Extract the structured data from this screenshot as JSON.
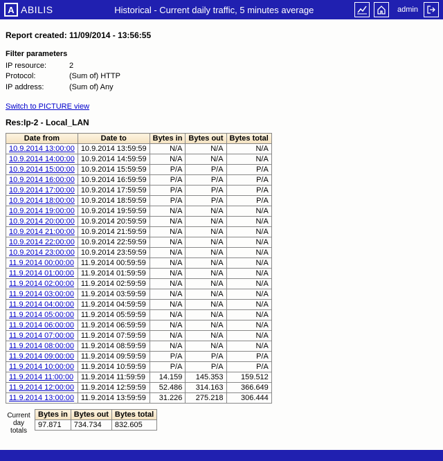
{
  "header": {
    "brand": "ABILIS",
    "title": "Historical - Current daily traffic, 5 minutes average",
    "admin_label": "admin"
  },
  "report": {
    "created_label": "Report created: 11/09/2014 - 13:56:55"
  },
  "filters": {
    "title": "Filter parameters",
    "rows": [
      {
        "label": "IP resource:",
        "value": "2"
      },
      {
        "label": "Protocol:",
        "value": "(Sum of) HTTP"
      },
      {
        "label": "IP address:",
        "value": "(Sum of) Any"
      }
    ]
  },
  "switch_link": "Switch to PICTURE view",
  "res_title": "Res:Ip-2 - Local_LAN",
  "table": {
    "headers": [
      "Date from",
      "Date to",
      "Bytes in",
      "Bytes out",
      "Bytes total"
    ],
    "col_widths": [
      "90px",
      "90px",
      "44px",
      "48px",
      "54px"
    ],
    "rows": [
      {
        "from": "10.9.2014 13:00:00",
        "to": "10.9.2014 13:59:59",
        "in": "N/A",
        "out": "N/A",
        "tot": "N/A"
      },
      {
        "from": "10.9.2014 14:00:00",
        "to": "10.9.2014 14:59:59",
        "in": "N/A",
        "out": "N/A",
        "tot": "N/A"
      },
      {
        "from": "10.9.2014 15:00:00",
        "to": "10.9.2014 15:59:59",
        "in": "P/A",
        "out": "P/A",
        "tot": "P/A"
      },
      {
        "from": "10.9.2014 16:00:00",
        "to": "10.9.2014 16:59:59",
        "in": "P/A",
        "out": "P/A",
        "tot": "P/A"
      },
      {
        "from": "10.9.2014 17:00:00",
        "to": "10.9.2014 17:59:59",
        "in": "P/A",
        "out": "P/A",
        "tot": "P/A"
      },
      {
        "from": "10.9.2014 18:00:00",
        "to": "10.9.2014 18:59:59",
        "in": "P/A",
        "out": "P/A",
        "tot": "P/A"
      },
      {
        "from": "10.9.2014 19:00:00",
        "to": "10.9.2014 19:59:59",
        "in": "N/A",
        "out": "N/A",
        "tot": "N/A"
      },
      {
        "from": "10.9.2014 20:00:00",
        "to": "10.9.2014 20:59:59",
        "in": "N/A",
        "out": "N/A",
        "tot": "N/A"
      },
      {
        "from": "10.9.2014 21:00:00",
        "to": "10.9.2014 21:59:59",
        "in": "N/A",
        "out": "N/A",
        "tot": "N/A"
      },
      {
        "from": "10.9.2014 22:00:00",
        "to": "10.9.2014 22:59:59",
        "in": "N/A",
        "out": "N/A",
        "tot": "N/A"
      },
      {
        "from": "10.9.2014 23:00:00",
        "to": "10.9.2014 23:59:59",
        "in": "N/A",
        "out": "N/A",
        "tot": "N/A"
      },
      {
        "from": "11.9.2014 00:00:00",
        "to": "11.9.2014 00:59:59",
        "in": "N/A",
        "out": "N/A",
        "tot": "N/A"
      },
      {
        "from": "11.9.2014 01:00:00",
        "to": "11.9.2014 01:59:59",
        "in": "N/A",
        "out": "N/A",
        "tot": "N/A"
      },
      {
        "from": "11.9.2014 02:00:00",
        "to": "11.9.2014 02:59:59",
        "in": "N/A",
        "out": "N/A",
        "tot": "N/A"
      },
      {
        "from": "11.9.2014 03:00:00",
        "to": "11.9.2014 03:59:59",
        "in": "N/A",
        "out": "N/A",
        "tot": "N/A"
      },
      {
        "from": "11.9.2014 04:00:00",
        "to": "11.9.2014 04:59:59",
        "in": "N/A",
        "out": "N/A",
        "tot": "N/A"
      },
      {
        "from": "11.9.2014 05:00:00",
        "to": "11.9.2014 05:59:59",
        "in": "N/A",
        "out": "N/A",
        "tot": "N/A"
      },
      {
        "from": "11.9.2014 06:00:00",
        "to": "11.9.2014 06:59:59",
        "in": "N/A",
        "out": "N/A",
        "tot": "N/A"
      },
      {
        "from": "11.9.2014 07:00:00",
        "to": "11.9.2014 07:59:59",
        "in": "N/A",
        "out": "N/A",
        "tot": "N/A"
      },
      {
        "from": "11.9.2014 08:00:00",
        "to": "11.9.2014 08:59:59",
        "in": "N/A",
        "out": "N/A",
        "tot": "N/A"
      },
      {
        "from": "11.9.2014 09:00:00",
        "to": "11.9.2014 09:59:59",
        "in": "P/A",
        "out": "P/A",
        "tot": "P/A"
      },
      {
        "from": "11.9.2014 10:00:00",
        "to": "11.9.2014 10:59:59",
        "in": "P/A",
        "out": "P/A",
        "tot": "P/A"
      },
      {
        "from": "11.9.2014 11:00:00",
        "to": "11.9.2014 11:59:59",
        "in": "14.159",
        "out": "145.353",
        "tot": "159.512"
      },
      {
        "from": "11.9.2014 12:00:00",
        "to": "11.9.2014 12:59:59",
        "in": "52.486",
        "out": "314.163",
        "tot": "366.649"
      },
      {
        "from": "11.9.2014 13:00:00",
        "to": "11.9.2014 13:59:59",
        "in": "31.226",
        "out": "275.218",
        "tot": "306.444"
      }
    ]
  },
  "totals": {
    "label_line1": "Current",
    "label_line2": "day",
    "label_line3": "totals",
    "headers": [
      "Bytes in",
      "Bytes out",
      "Bytes total"
    ],
    "values": [
      "97.871",
      "734.734",
      "832.605"
    ]
  }
}
